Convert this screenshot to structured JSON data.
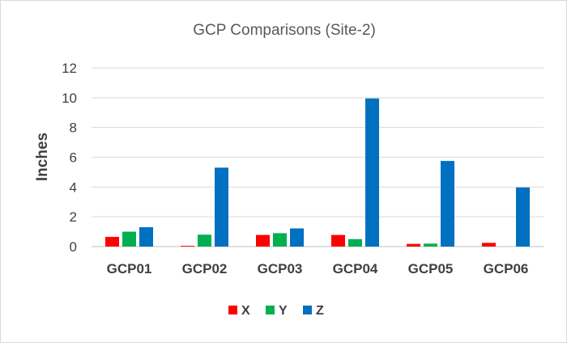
{
  "chart_data": {
    "type": "bar",
    "title": "GCP Comparisons (Site-2)",
    "xlabel": "",
    "ylabel": "Inches",
    "categories": [
      "GCP01",
      "GCP02",
      "GCP03",
      "GCP04",
      "GCP05",
      "GCP06"
    ],
    "series": [
      {
        "name": "X",
        "color": "#ff0000",
        "values": [
          0.65,
          0.05,
          0.78,
          0.78,
          0.18,
          0.25
        ]
      },
      {
        "name": "Y",
        "color": "#00b050",
        "values": [
          1.0,
          0.8,
          0.9,
          0.5,
          0.2,
          0.0
        ]
      },
      {
        "name": "Z",
        "color": "#0070c0",
        "values": [
          1.3,
          5.3,
          1.22,
          9.95,
          5.75,
          3.97
        ]
      }
    ],
    "ylim": [
      0,
      12
    ],
    "yticks": [
      0,
      2,
      4,
      6,
      8,
      10,
      12
    ],
    "grid": true,
    "legend": "bottom-center"
  }
}
